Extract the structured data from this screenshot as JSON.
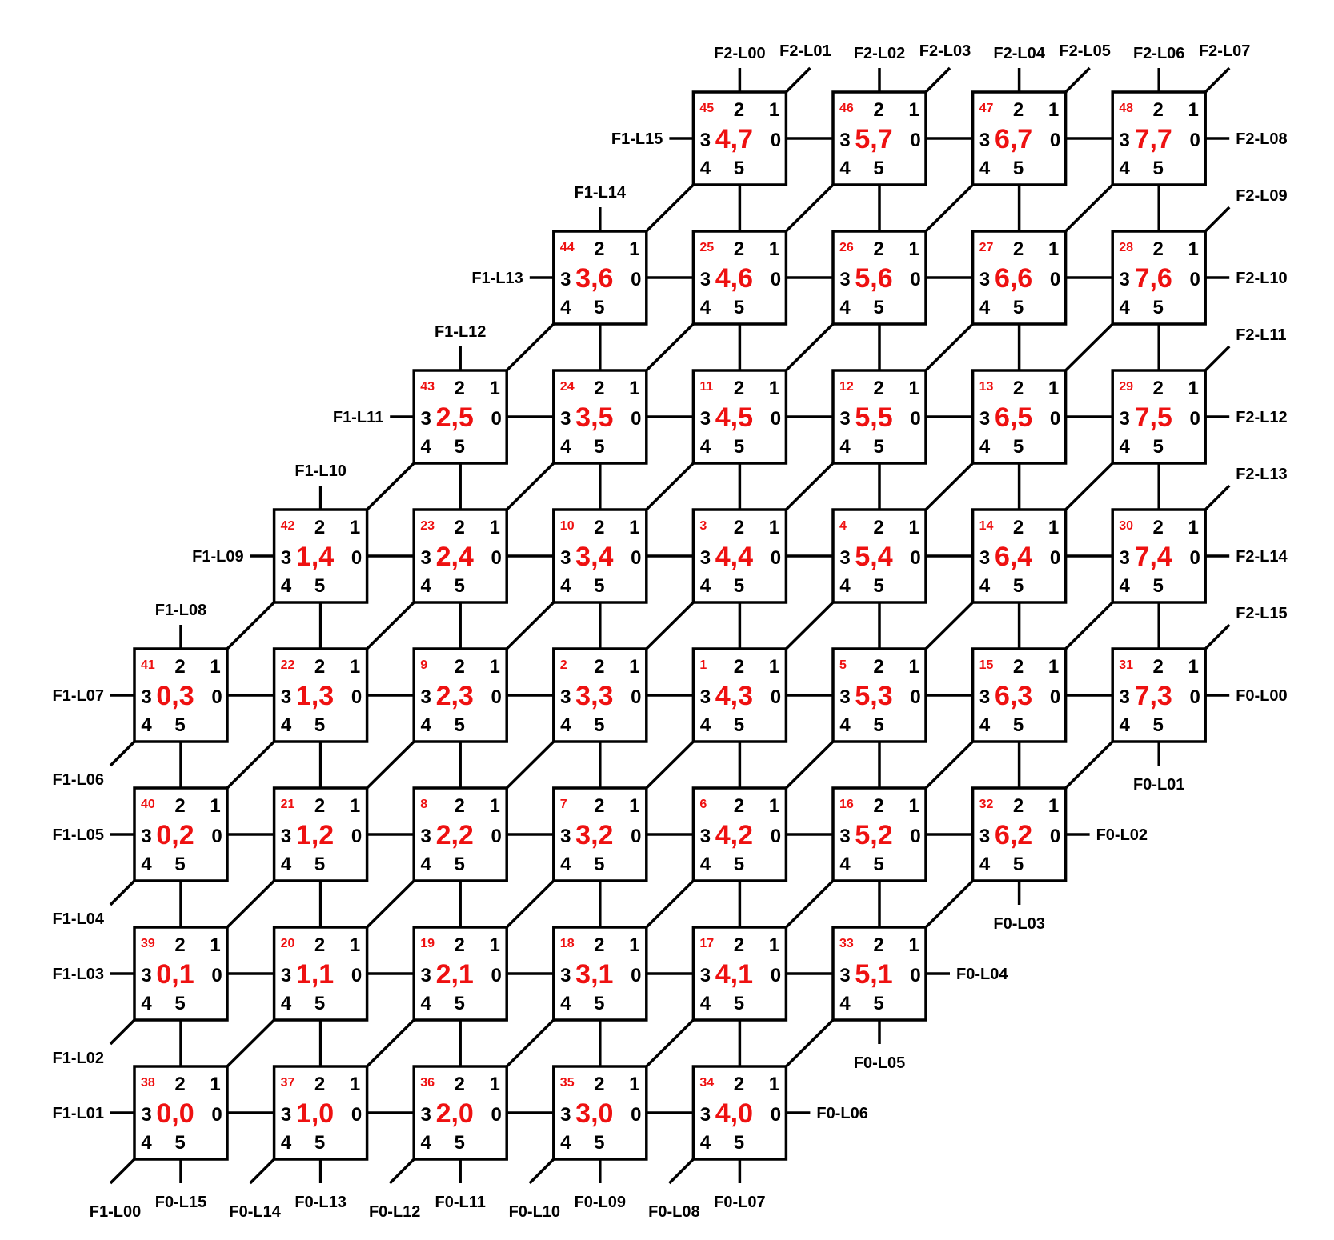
{
  "colors": {
    "line": "#000000",
    "node_label": "#ee1111",
    "background": "#ffffff"
  },
  "ports": [
    "0",
    "1",
    "2",
    "3",
    "4",
    "5"
  ],
  "nodes": [
    {
      "id": "38",
      "coord": "0,0",
      "x": 0,
      "y": 0
    },
    {
      "id": "37",
      "coord": "1,0",
      "x": 1,
      "y": 0
    },
    {
      "id": "36",
      "coord": "2,0",
      "x": 2,
      "y": 0
    },
    {
      "id": "35",
      "coord": "3,0",
      "x": 3,
      "y": 0
    },
    {
      "id": "34",
      "coord": "4,0",
      "x": 4,
      "y": 0
    },
    {
      "id": "39",
      "coord": "0,1",
      "x": 0,
      "y": 1
    },
    {
      "id": "20",
      "coord": "1,1",
      "x": 1,
      "y": 1
    },
    {
      "id": "19",
      "coord": "2,1",
      "x": 2,
      "y": 1
    },
    {
      "id": "18",
      "coord": "3,1",
      "x": 3,
      "y": 1
    },
    {
      "id": "17",
      "coord": "4,1",
      "x": 4,
      "y": 1
    },
    {
      "id": "33",
      "coord": "5,1",
      "x": 5,
      "y": 1
    },
    {
      "id": "40",
      "coord": "0,2",
      "x": 0,
      "y": 2
    },
    {
      "id": "21",
      "coord": "1,2",
      "x": 1,
      "y": 2
    },
    {
      "id": "8",
      "coord": "2,2",
      "x": 2,
      "y": 2
    },
    {
      "id": "7",
      "coord": "3,2",
      "x": 3,
      "y": 2
    },
    {
      "id": "6",
      "coord": "4,2",
      "x": 4,
      "y": 2
    },
    {
      "id": "16",
      "coord": "5,2",
      "x": 5,
      "y": 2
    },
    {
      "id": "32",
      "coord": "6,2",
      "x": 6,
      "y": 2
    },
    {
      "id": "41",
      "coord": "0,3",
      "x": 0,
      "y": 3
    },
    {
      "id": "22",
      "coord": "1,3",
      "x": 1,
      "y": 3
    },
    {
      "id": "9",
      "coord": "2,3",
      "x": 2,
      "y": 3
    },
    {
      "id": "2",
      "coord": "3,3",
      "x": 3,
      "y": 3
    },
    {
      "id": "1",
      "coord": "4,3",
      "x": 4,
      "y": 3
    },
    {
      "id": "5",
      "coord": "5,3",
      "x": 5,
      "y": 3
    },
    {
      "id": "15",
      "coord": "6,3",
      "x": 6,
      "y": 3
    },
    {
      "id": "31",
      "coord": "7,3",
      "x": 7,
      "y": 3
    },
    {
      "id": "42",
      "coord": "1,4",
      "x": 1,
      "y": 4
    },
    {
      "id": "23",
      "coord": "2,4",
      "x": 2,
      "y": 4
    },
    {
      "id": "10",
      "coord": "3,4",
      "x": 3,
      "y": 4
    },
    {
      "id": "3",
      "coord": "4,4",
      "x": 4,
      "y": 4
    },
    {
      "id": "4",
      "coord": "5,4",
      "x": 5,
      "y": 4
    },
    {
      "id": "14",
      "coord": "6,4",
      "x": 6,
      "y": 4
    },
    {
      "id": "30",
      "coord": "7,4",
      "x": 7,
      "y": 4
    },
    {
      "id": "43",
      "coord": "2,5",
      "x": 2,
      "y": 5
    },
    {
      "id": "24",
      "coord": "3,5",
      "x": 3,
      "y": 5
    },
    {
      "id": "11",
      "coord": "4,5",
      "x": 4,
      "y": 5
    },
    {
      "id": "12",
      "coord": "5,5",
      "x": 5,
      "y": 5
    },
    {
      "id": "13",
      "coord": "6,5",
      "x": 6,
      "y": 5
    },
    {
      "id": "29",
      "coord": "7,5",
      "x": 7,
      "y": 5
    },
    {
      "id": "44",
      "coord": "3,6",
      "x": 3,
      "y": 6
    },
    {
      "id": "25",
      "coord": "4,6",
      "x": 4,
      "y": 6
    },
    {
      "id": "26",
      "coord": "5,6",
      "x": 5,
      "y": 6
    },
    {
      "id": "27",
      "coord": "6,6",
      "x": 6,
      "y": 6
    },
    {
      "id": "28",
      "coord": "7,6",
      "x": 7,
      "y": 6
    },
    {
      "id": "45",
      "coord": "4,7",
      "x": 4,
      "y": 7
    },
    {
      "id": "46",
      "coord": "5,7",
      "x": 5,
      "y": 7
    },
    {
      "id": "47",
      "coord": "6,7",
      "x": 6,
      "y": 7
    },
    {
      "id": "48",
      "coord": "7,7",
      "x": 7,
      "y": 7
    }
  ],
  "external_links": [
    {
      "label": "F1-L00",
      "node": "0,0",
      "port": "4"
    },
    {
      "label": "F0-L15",
      "node": "0,0",
      "port": "5"
    },
    {
      "label": "F0-L14",
      "node": "1,0",
      "port": "4"
    },
    {
      "label": "F0-L13",
      "node": "1,0",
      "port": "5"
    },
    {
      "label": "F0-L12",
      "node": "2,0",
      "port": "4"
    },
    {
      "label": "F0-L11",
      "node": "2,0",
      "port": "5"
    },
    {
      "label": "F0-L10",
      "node": "3,0",
      "port": "4"
    },
    {
      "label": "F0-L09",
      "node": "3,0",
      "port": "5"
    },
    {
      "label": "F0-L08",
      "node": "4,0",
      "port": "4"
    },
    {
      "label": "F0-L07",
      "node": "4,0",
      "port": "5"
    },
    {
      "label": "F0-L06",
      "node": "4,0",
      "port": "0"
    },
    {
      "label": "F0-L05",
      "node": "5,1",
      "port": "5"
    },
    {
      "label": "F0-L04",
      "node": "5,1",
      "port": "0"
    },
    {
      "label": "F0-L03",
      "node": "6,2",
      "port": "5"
    },
    {
      "label": "F0-L02",
      "node": "6,2",
      "port": "0"
    },
    {
      "label": "F0-L01",
      "node": "7,3",
      "port": "5"
    },
    {
      "label": "F0-L00",
      "node": "7,3",
      "port": "0"
    },
    {
      "label": "F1-L01",
      "node": "0,0",
      "port": "3"
    },
    {
      "label": "F1-L02",
      "node": "0,1",
      "port": "4"
    },
    {
      "label": "F1-L03",
      "node": "0,1",
      "port": "3"
    },
    {
      "label": "F1-L04",
      "node": "0,2",
      "port": "4"
    },
    {
      "label": "F1-L05",
      "node": "0,2",
      "port": "3"
    },
    {
      "label": "F1-L06",
      "node": "0,3",
      "port": "4"
    },
    {
      "label": "F1-L07",
      "node": "0,3",
      "port": "3"
    },
    {
      "label": "F1-L08",
      "node": "0,3",
      "port": "2"
    },
    {
      "label": "F1-L09",
      "node": "1,4",
      "port": "3"
    },
    {
      "label": "F1-L10",
      "node": "1,4",
      "port": "2"
    },
    {
      "label": "F1-L11",
      "node": "2,5",
      "port": "3"
    },
    {
      "label": "F1-L12",
      "node": "2,5",
      "port": "2"
    },
    {
      "label": "F1-L13",
      "node": "3,6",
      "port": "3"
    },
    {
      "label": "F1-L14",
      "node": "3,6",
      "port": "2"
    },
    {
      "label": "F1-L15",
      "node": "4,7",
      "port": "3"
    },
    {
      "label": "F2-L00",
      "node": "4,7",
      "port": "2"
    },
    {
      "label": "F2-L01",
      "node": "4,7",
      "port": "1"
    },
    {
      "label": "F2-L02",
      "node": "5,7",
      "port": "2"
    },
    {
      "label": "F2-L03",
      "node": "5,7",
      "port": "1"
    },
    {
      "label": "F2-L04",
      "node": "6,7",
      "port": "2"
    },
    {
      "label": "F2-L05",
      "node": "6,7",
      "port": "1"
    },
    {
      "label": "F2-L06",
      "node": "7,7",
      "port": "2"
    },
    {
      "label": "F2-L07",
      "node": "7,7",
      "port": "1"
    },
    {
      "label": "F2-L08",
      "node": "7,7",
      "port": "0"
    },
    {
      "label": "F2-L09",
      "node": "7,6",
      "port": "1"
    },
    {
      "label": "F2-L10",
      "node": "7,6",
      "port": "0"
    },
    {
      "label": "F2-L11",
      "node": "7,5",
      "port": "1"
    },
    {
      "label": "F2-L12",
      "node": "7,5",
      "port": "0"
    },
    {
      "label": "F2-L13",
      "node": "7,4",
      "port": "1"
    },
    {
      "label": "F2-L14",
      "node": "7,4",
      "port": "0"
    },
    {
      "label": "F2-L15",
      "node": "7,3",
      "port": "1"
    }
  ]
}
